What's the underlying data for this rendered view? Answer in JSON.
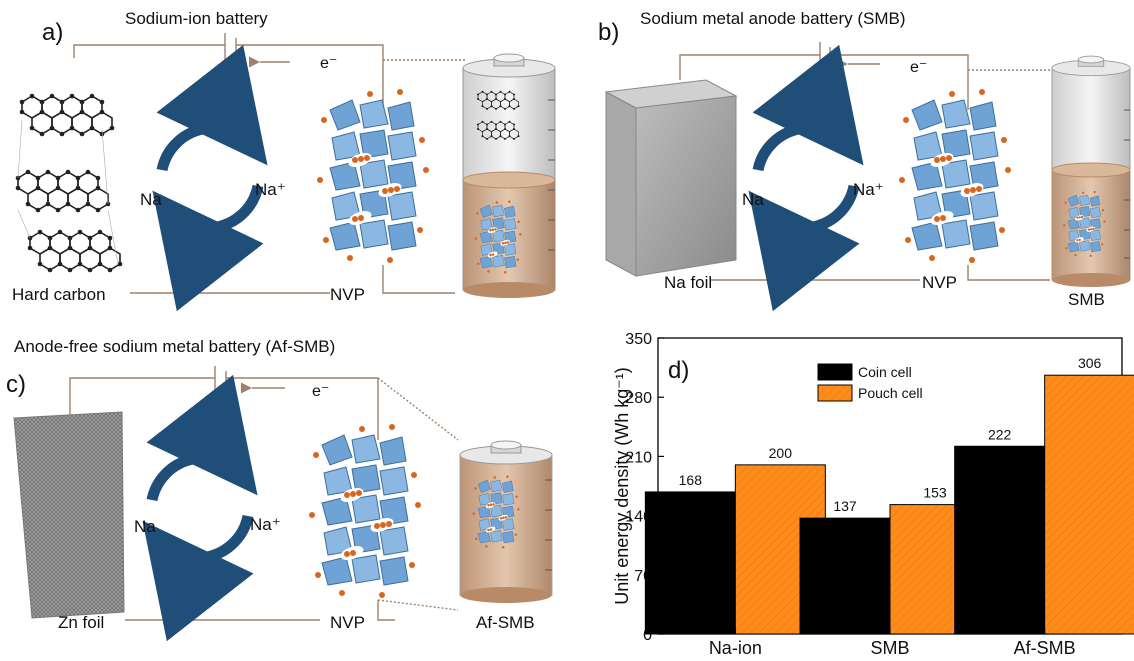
{
  "panel_a": {
    "letter": "a)",
    "title": "Sodium-ion battery",
    "electron": "e⁻",
    "anode_label": "Hard carbon",
    "cathode_label": "NVP",
    "cycle_left": "Na",
    "cycle_right": "Na⁺"
  },
  "panel_b": {
    "letter": "b)",
    "title": "Sodium metal anode battery (SMB)",
    "electron": "e⁻",
    "anode_label": "Na foil",
    "cathode_label": "NVP",
    "cell_label": "SMB",
    "cycle_left": "Na",
    "cycle_right": "Na⁺"
  },
  "panel_c": {
    "letter": "c)",
    "title": "Anode-free sodium metal battery (Af-SMB)",
    "electron": "e⁻",
    "anode_label": "Zn foil",
    "cathode_label": "NVP",
    "cell_label": "Af-SMB",
    "cycle_left": "Na",
    "cycle_right": "Na⁺"
  },
  "panel_d": {
    "letter": "d)",
    "chart_data": {
      "type": "bar",
      "categories": [
        "Na-ion",
        "SMB",
        "Af-SMB"
      ],
      "series": [
        {
          "name": "Coin cell",
          "values": [
            168,
            137,
            222
          ],
          "color": "#000000"
        },
        {
          "name": "Pouch cell",
          "values": [
            200,
            153,
            306
          ],
          "color": "#ff8c1a"
        }
      ],
      "ylabel": "Unit energy density (Wh kg⁻¹)",
      "ylim": [
        0,
        350
      ],
      "yticks": [
        "0",
        "70",
        "140",
        "210",
        "280",
        "350"
      ],
      "legend": "top-left"
    }
  },
  "colors": {
    "arrow_blue": "#1f4e79",
    "wire": "#a0806a",
    "polyhedra": "#6fa3d6",
    "sodium": "#d9661e",
    "electrolyte": "#c99a78"
  }
}
